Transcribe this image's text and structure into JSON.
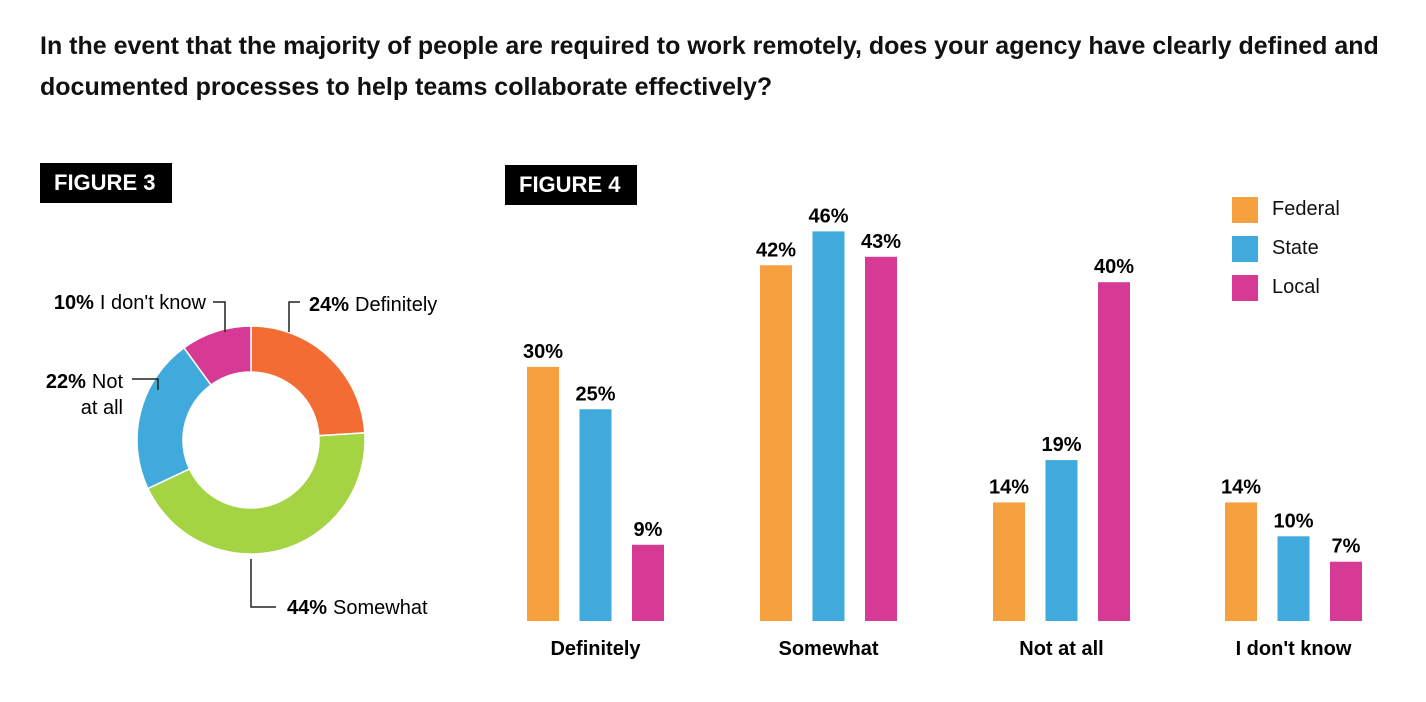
{
  "title": "In the event that the majority of people are required to work remotely, does your agency have clearly defined and documented processes to help teams collaborate effectively?",
  "figure3": {
    "badge": "FIGURE 3",
    "labels": [
      {
        "pct": "24%",
        "text": "Definitely"
      },
      {
        "pct": "44%",
        "text": "Somewhat"
      },
      {
        "pct": "22%",
        "text": "Not",
        "text2": "at all"
      },
      {
        "pct": "10%",
        "text": "I don't know"
      }
    ]
  },
  "figure4": {
    "badge": "FIGURE 4"
  },
  "legend": [
    {
      "label": "Federal",
      "color": "#f6a03f"
    },
    {
      "label": "State",
      "color": "#41aadd"
    },
    {
      "label": "Local",
      "color": "#d63a94"
    }
  ],
  "chart_data": [
    {
      "type": "pie",
      "variant": "donut",
      "categories": [
        "Definitely",
        "Somewhat",
        "Not at all",
        "I don't know"
      ],
      "values": [
        24,
        44,
        22,
        10
      ],
      "colors": [
        "#f36c33",
        "#a4d444",
        "#41aadd",
        "#d63a94"
      ]
    },
    {
      "type": "bar",
      "categories": [
        "Definitely",
        "Somewhat",
        "Not at all",
        "I don't know"
      ],
      "series": [
        {
          "name": "Federal",
          "values": [
            30,
            42,
            14,
            14
          ],
          "color": "#f6a03f"
        },
        {
          "name": "State",
          "values": [
            25,
            46,
            19,
            10
          ],
          "color": "#41aadd"
        },
        {
          "name": "Local",
          "values": [
            9,
            43,
            40,
            7
          ],
          "color": "#d63a94"
        }
      ],
      "ylim": [
        0,
        50
      ],
      "value_suffix": "%",
      "grid": false
    }
  ]
}
